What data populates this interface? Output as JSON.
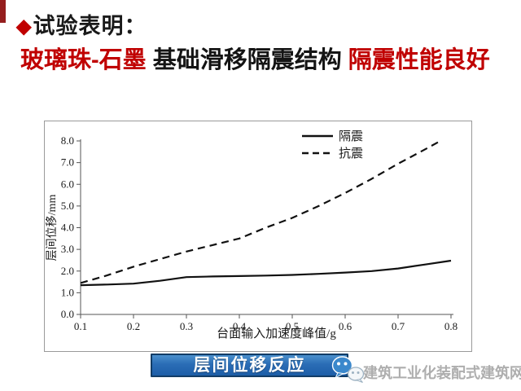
{
  "slide": {
    "title_bullet": "◆",
    "title": "试验表明：",
    "subtitle_segments": [
      {
        "text": "玻璃珠-石墨",
        "color": "red"
      },
      {
        "text": " 基础滑移隔震结构 ",
        "color": "black"
      },
      {
        "text": "隔震性能良好",
        "color": "red"
      }
    ],
    "caption_banner": "层间位移反应",
    "watermark": "建筑工业化装配式建筑网",
    "colors": {
      "accent_red": "#c00000",
      "corner_strip_red": "#951e1e",
      "banner_blue": "#2a6cb5",
      "banner_border": "#123c66",
      "watermark_gray": "#aeaeae"
    }
  },
  "chart_data": {
    "type": "line",
    "title": "",
    "xlabel": "台面输入加速度峰值/g",
    "ylabel": "层间位移/mm",
    "xlim": [
      0.1,
      0.8
    ],
    "ylim": [
      0.0,
      8.0
    ],
    "x_ticks": [
      "0.1",
      "0.2",
      "0.3",
      "0.4",
      "0.5",
      "0.6",
      "0.7",
      "0.8"
    ],
    "y_ticks": [
      "0.0",
      "1.0",
      "2.0",
      "3.0",
      "4.0",
      "5.0",
      "6.0",
      "7.0",
      "8.0"
    ],
    "grid": false,
    "legend_position": "top-right",
    "series": [
      {
        "name": "隔震",
        "style": "solid",
        "x": [
          0.1,
          0.15,
          0.2,
          0.25,
          0.3,
          0.35,
          0.4,
          0.45,
          0.5,
          0.55,
          0.6,
          0.65,
          0.7,
          0.75,
          0.8
        ],
        "values": [
          1.35,
          1.38,
          1.42,
          1.55,
          1.72,
          1.75,
          1.77,
          1.79,
          1.82,
          1.87,
          1.93,
          2.0,
          2.12,
          2.3,
          2.48
        ]
      },
      {
        "name": "抗震",
        "style": "dashed",
        "x": [
          0.1,
          0.15,
          0.2,
          0.25,
          0.3,
          0.35,
          0.4,
          0.45,
          0.5,
          0.55,
          0.6,
          0.65,
          0.7,
          0.75,
          0.78
        ],
        "values": [
          1.45,
          1.8,
          2.2,
          2.55,
          2.9,
          3.2,
          3.5,
          4.0,
          4.45,
          5.0,
          5.6,
          6.25,
          6.95,
          7.6,
          8.0
        ]
      }
    ]
  }
}
